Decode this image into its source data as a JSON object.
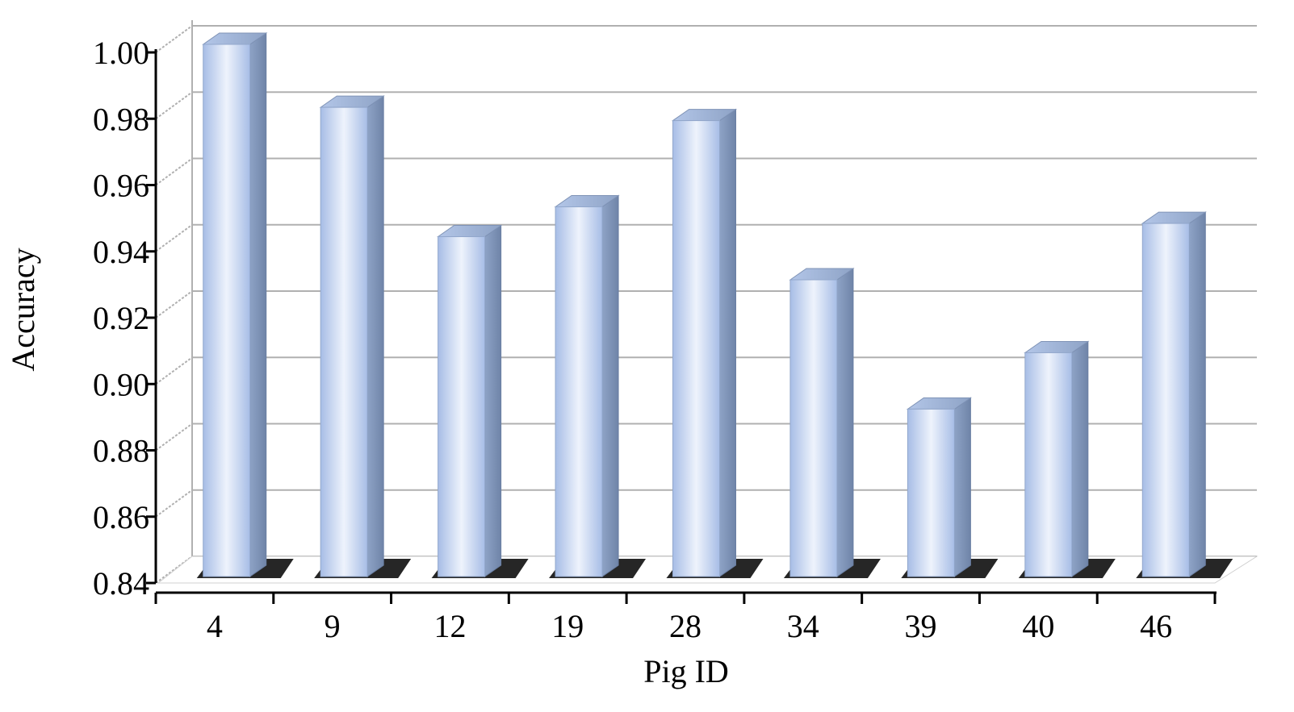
{
  "chart_data": {
    "type": "bar",
    "title": "",
    "xlabel": "Pig ID",
    "ylabel": "Accuracy",
    "categories": [
      "4",
      "9",
      "12",
      "19",
      "28",
      "34",
      "39",
      "40",
      "46"
    ],
    "values": [
      1.0,
      0.981,
      0.942,
      0.951,
      0.977,
      0.929,
      0.89,
      0.907,
      0.946
    ],
    "ylim": [
      0.84,
      1.0
    ],
    "yticks": [
      "0.84",
      "0.86",
      "0.88",
      "0.90",
      "0.92",
      "0.94",
      "0.96",
      "0.98",
      "1.00"
    ],
    "grid": true,
    "legend": "none",
    "style": "3d-column",
    "colors": {
      "bar_light": "#eef3fc",
      "bar_mid": "#b7c9ea",
      "bar_side": "#7f93b6",
      "bar_top": "#9eb3d8",
      "grid": "#b0b0b0",
      "axis": "#000000"
    }
  }
}
